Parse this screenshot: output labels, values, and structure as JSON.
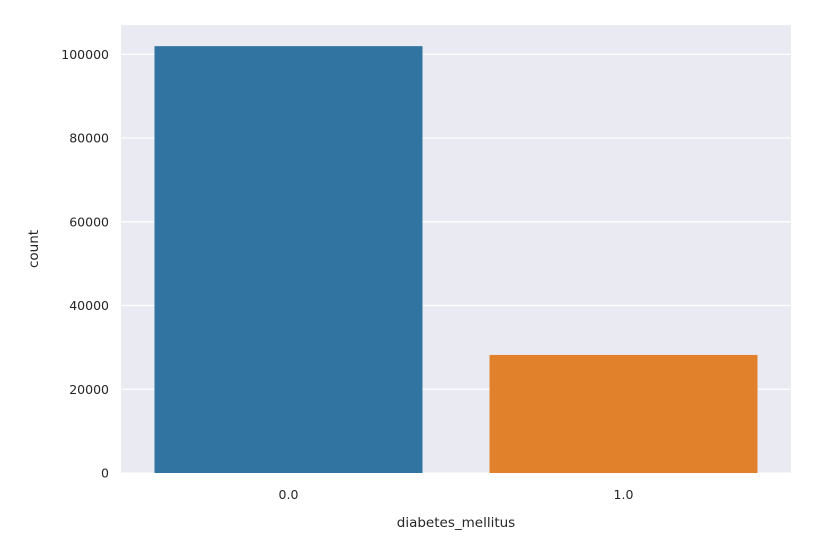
{
  "chart_data": {
    "type": "bar",
    "title": "",
    "xlabel": "diabetes_mellitus",
    "ylabel": "count",
    "categories": [
      "0.0",
      "1.0"
    ],
    "values": [
      101950,
      28200
    ],
    "ylim": [
      0,
      107000
    ],
    "yticks": [
      0,
      20000,
      40000,
      60000,
      80000,
      100000
    ],
    "ytick_labels": [
      "0",
      "20000",
      "40000",
      "60000",
      "80000",
      "100000"
    ],
    "colors": [
      "#3274a1",
      "#e1812c"
    ],
    "grid": true,
    "background": "#eaeaf2"
  }
}
